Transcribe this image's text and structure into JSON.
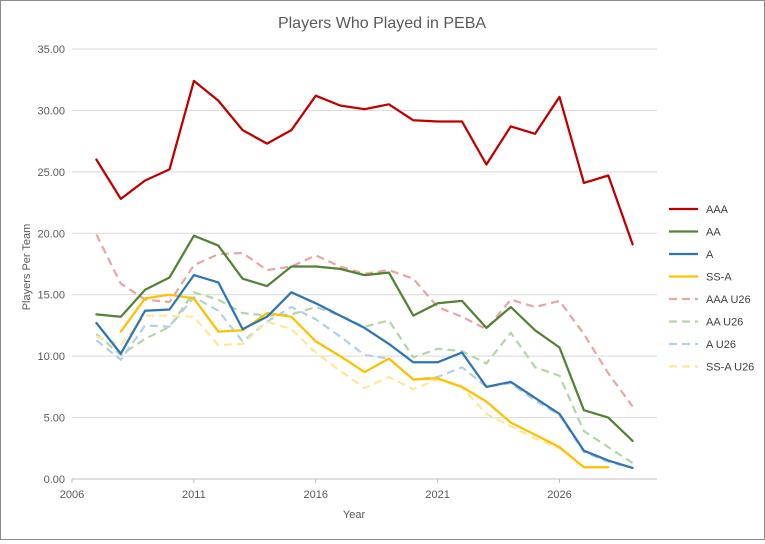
{
  "chart_data": {
    "type": "line",
    "title": "Players Who Played in PEBA",
    "xlabel": "Year",
    "ylabel": "Players Per Team",
    "xlim": [
      2006,
      2030
    ],
    "ylim": [
      0,
      35
    ],
    "x_ticks": [
      "2006",
      "2011",
      "2016",
      "2021",
      "2026"
    ],
    "y_ticks": [
      "0.00",
      "5.00",
      "10.00",
      "15.00",
      "20.00",
      "25.00",
      "30.00",
      "35.00"
    ],
    "grid": "horizontal",
    "legend_position": "right",
    "series": [
      {
        "name": "AAA",
        "color": "#c00000",
        "dashed": false,
        "x": [
          2007,
          2008,
          2009,
          2010,
          2011,
          2012,
          2013,
          2014,
          2015,
          2016,
          2017,
          2018,
          2019,
          2020,
          2021,
          2022,
          2023,
          2024,
          2025,
          2026,
          2027,
          2028,
          2029
        ],
        "values": [
          26.0,
          22.8,
          24.3,
          25.2,
          32.4,
          30.8,
          28.4,
          27.3,
          28.4,
          31.2,
          30.4,
          30.1,
          30.5,
          29.2,
          29.1,
          29.1,
          25.6,
          28.7,
          28.1,
          31.1,
          24.1,
          24.7,
          19.1
        ]
      },
      {
        "name": "AA",
        "color": "#548235",
        "dashed": false,
        "x": [
          2007,
          2008,
          2009,
          2010,
          2011,
          2012,
          2013,
          2014,
          2015,
          2016,
          2017,
          2018,
          2019,
          2020,
          2021,
          2022,
          2023,
          2024,
          2025,
          2026,
          2027,
          2028,
          2029
        ],
        "values": [
          13.4,
          13.2,
          15.4,
          16.4,
          19.8,
          19.0,
          16.3,
          15.7,
          17.3,
          17.3,
          17.1,
          16.6,
          16.8,
          13.3,
          14.3,
          14.5,
          12.3,
          14.0,
          12.1,
          10.7,
          5.6,
          5.0,
          3.1
        ]
      },
      {
        "name": "A",
        "color": "#2e75b6",
        "dashed": false,
        "x": [
          2007,
          2008,
          2009,
          2010,
          2011,
          2012,
          2013,
          2014,
          2015,
          2016,
          2017,
          2018,
          2019,
          2020,
          2021,
          2022,
          2023,
          2024,
          2025,
          2026,
          2027,
          2028,
          2029
        ],
        "values": [
          12.7,
          10.2,
          13.7,
          13.8,
          16.6,
          16.0,
          12.2,
          13.2,
          15.2,
          14.3,
          13.3,
          12.3,
          11.0,
          9.5,
          9.5,
          10.3,
          7.5,
          7.9,
          6.6,
          5.3,
          2.3,
          1.5,
          0.9
        ]
      },
      {
        "name": "SS-A",
        "color": "#ffc000",
        "dashed": false,
        "x": [
          2008,
          2009,
          2010,
          2011,
          2012,
          2013,
          2014,
          2015,
          2016,
          2017,
          2018,
          2019,
          2020,
          2021,
          2022,
          2023,
          2024,
          2025,
          2026,
          2027,
          2028
        ],
        "values": [
          12.0,
          14.7,
          15.0,
          14.7,
          12.0,
          12.1,
          13.5,
          13.2,
          11.2,
          10.0,
          8.7,
          9.8,
          8.1,
          8.2,
          7.5,
          6.3,
          4.6,
          3.6,
          2.6,
          0.95,
          0.95
        ]
      },
      {
        "name": "AAA U26",
        "color": "#e6a7a5",
        "dashed": true,
        "x": [
          2007,
          2008,
          2009,
          2010,
          2011,
          2012,
          2013,
          2014,
          2015,
          2016,
          2017,
          2018,
          2019,
          2020,
          2021,
          2022,
          2023,
          2024,
          2025,
          2026,
          2027,
          2028,
          2029
        ],
        "values": [
          19.9,
          15.9,
          14.6,
          14.4,
          17.4,
          18.3,
          18.4,
          17.0,
          17.3,
          18.2,
          17.3,
          16.7,
          17.0,
          16.3,
          14.0,
          13.2,
          12.2,
          14.6,
          14.0,
          14.5,
          11.8,
          8.6,
          5.9
        ]
      },
      {
        "name": "AA U26",
        "color": "#b4d7a8",
        "dashed": true,
        "x": [
          2007,
          2008,
          2009,
          2010,
          2011,
          2012,
          2013,
          2014,
          2015,
          2016,
          2017,
          2018,
          2019,
          2020,
          2021,
          2022,
          2023,
          2024,
          2025,
          2026,
          2027,
          2028,
          2029
        ],
        "values": [
          11.8,
          10.1,
          11.4,
          12.4,
          15.2,
          14.6,
          13.5,
          13.3,
          13.4,
          14.0,
          13.3,
          12.4,
          12.9,
          9.9,
          10.6,
          10.4,
          9.4,
          11.9,
          9.1,
          8.4,
          3.9,
          2.6,
          1.3
        ]
      },
      {
        "name": "A U26",
        "color": "#b4cfe8",
        "dashed": true,
        "x": [
          2007,
          2008,
          2009,
          2010,
          2011,
          2012,
          2013,
          2014,
          2015,
          2016,
          2017,
          2018,
          2019,
          2020,
          2021,
          2022,
          2023,
          2024,
          2025,
          2026,
          2027,
          2028,
          2029
        ],
        "values": [
          11.3,
          9.7,
          12.5,
          12.4,
          14.8,
          13.7,
          11.2,
          12.8,
          14.0,
          13.0,
          11.6,
          10.1,
          9.8,
          8.1,
          8.3,
          9.1,
          7.5,
          7.8,
          6.4,
          5.2,
          2.2,
          1.4,
          0.9
        ]
      },
      {
        "name": "SS-A U26",
        "color": "#ffe699",
        "dashed": true,
        "x": [
          2007,
          2008,
          2009,
          2010,
          2011,
          2012,
          2013,
          2014,
          2015,
          2016,
          2017,
          2018,
          2019,
          2020,
          2021,
          2022,
          2023,
          2024,
          2025,
          2026,
          2027,
          2028
        ],
        "values": [
          11.6,
          10.9,
          13.3,
          13.3,
          13.2,
          10.9,
          11.0,
          12.8,
          12.2,
          10.3,
          8.8,
          7.4,
          8.3,
          7.3,
          8.1,
          7.5,
          5.3,
          4.3,
          3.3,
          2.5,
          0.95,
          0.95
        ]
      }
    ]
  }
}
